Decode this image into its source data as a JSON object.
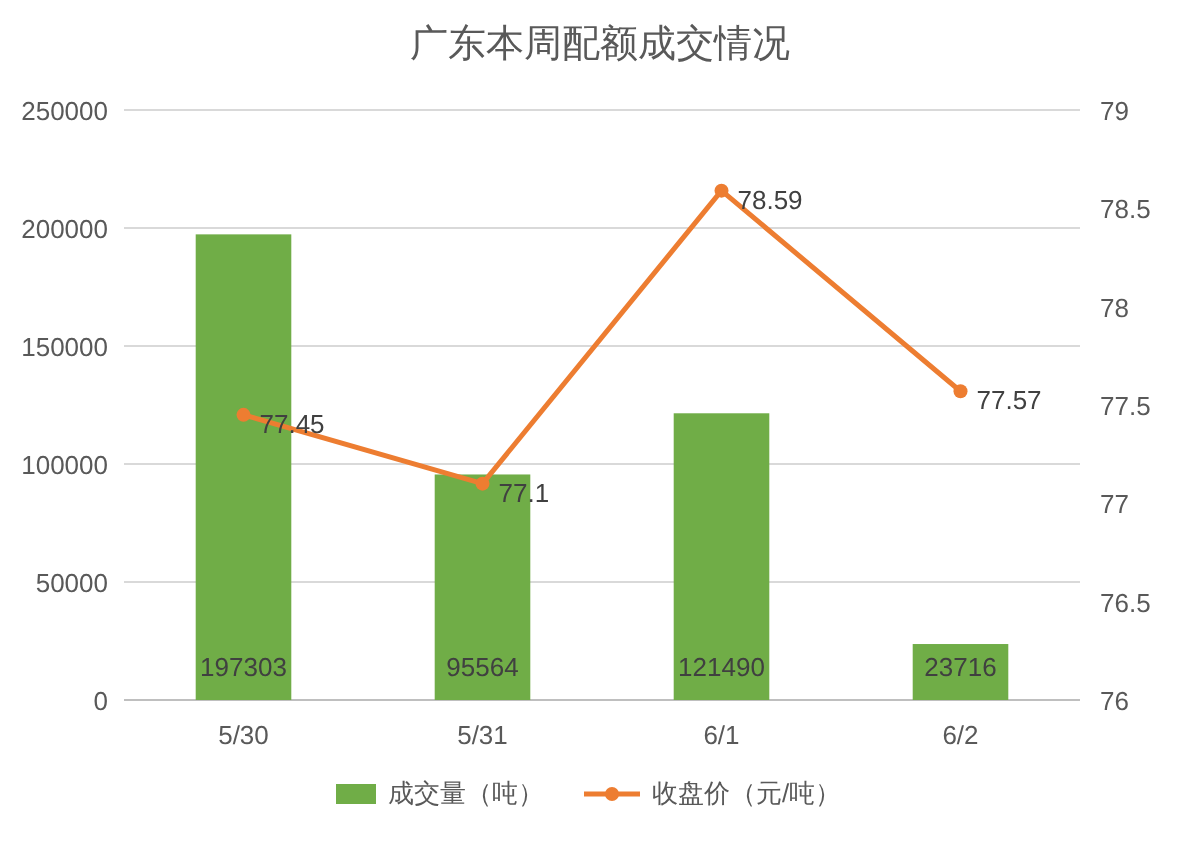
{
  "chart_data": {
    "type": "bar",
    "title": "广东本周配额成交情况",
    "categories": [
      "5/30",
      "5/31",
      "6/1",
      "6/2"
    ],
    "series": [
      {
        "name": "成交量（吨）",
        "color": "#70ad47",
        "values": [
          197303,
          95564,
          121490,
          23716
        ]
      },
      {
        "name": "收盘价（元/吨）",
        "type": "line",
        "axis": "y2",
        "color": "#ed7d31",
        "values": [
          77.45,
          77.1,
          78.59,
          77.57
        ]
      }
    ],
    "ylim": [
      0,
      250000
    ],
    "yticks": [
      0,
      50000,
      100000,
      150000,
      200000,
      250000
    ],
    "y2lim": [
      76,
      79
    ],
    "y2ticks": [
      76,
      76.5,
      77,
      77.5,
      78,
      78.5,
      79
    ],
    "grid": "y",
    "legend": "bottom",
    "marker": "circle",
    "data_labels": true
  }
}
